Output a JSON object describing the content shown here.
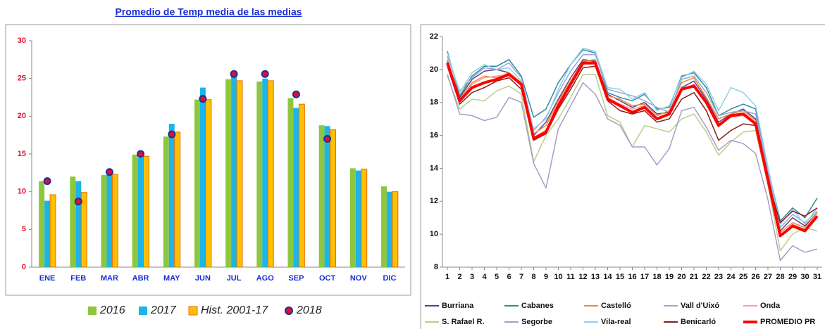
{
  "chart_data": [
    {
      "type": "bar",
      "title": "Promedio de Temp media de las medias",
      "categories": [
        "ENE",
        "FEB",
        "MAR",
        "ABR",
        "MAY",
        "JUN",
        "JUL",
        "AGO",
        "SEP",
        "OCT",
        "NOV",
        "DIC"
      ],
      "series": [
        {
          "name": "2016",
          "color": "#8dc63f",
          "values": [
            11.4,
            12.0,
            12.2,
            14.9,
            17.3,
            22.2,
            24.9,
            24.6,
            22.4,
            18.8,
            13.1,
            10.7
          ]
        },
        {
          "name": "2017",
          "color": "#1eb4e8",
          "values": [
            8.8,
            11.4,
            12.6,
            14.5,
            19.0,
            23.8,
            25.5,
            25.0,
            21.1,
            18.7,
            12.8,
            10.0
          ]
        },
        {
          "name": "Hist. 2001-17",
          "color": "#ffc000",
          "edgecolor": "#e46c0a",
          "values": [
            9.6,
            9.9,
            12.3,
            14.7,
            17.9,
            22.2,
            24.7,
            24.7,
            21.6,
            18.2,
            13.0,
            10.0
          ]
        },
        {
          "name": "2018",
          "color": "#e0102a",
          "edgecolor": "#1a2fa0",
          "marker": "circle",
          "values": [
            11.4,
            8.7,
            12.6,
            15.0,
            17.6,
            22.3,
            25.6,
            25.6,
            22.9,
            17.0,
            null,
            null
          ]
        }
      ],
      "ylim": [
        0,
        30
      ],
      "yticks": [
        0,
        5,
        10,
        15,
        20,
        25,
        30
      ],
      "grid": false
    },
    {
      "type": "line",
      "x": [
        1,
        2,
        3,
        4,
        5,
        6,
        7,
        8,
        9,
        10,
        11,
        12,
        13,
        14,
        15,
        16,
        17,
        18,
        19,
        20,
        21,
        22,
        23,
        24,
        25,
        26,
        27,
        28,
        29,
        30,
        31
      ],
      "xlim": [
        0.6,
        31.4
      ],
      "xticks": [
        1,
        2,
        3,
        4,
        5,
        6,
        7,
        8,
        9,
        10,
        11,
        12,
        13,
        14,
        15,
        16,
        17,
        18,
        19,
        20,
        21,
        22,
        23,
        24,
        25,
        26,
        27,
        28,
        29,
        30,
        31
      ],
      "ylim": [
        8,
        22
      ],
      "yticks": [
        8,
        10,
        12,
        14,
        16,
        18,
        20,
        22
      ],
      "grid": false,
      "series": [
        {
          "name": "Burriana",
          "color": "#5b3f8c",
          "values": [
            20.5,
            18.3,
            19.4,
            19.9,
            20.0,
            19.8,
            19.2,
            16.0,
            16.8,
            18.2,
            19.5,
            20.6,
            20.5,
            18.5,
            18.1,
            17.7,
            18.0,
            17.3,
            17.4,
            18.9,
            19.3,
            18.2,
            16.8,
            17.3,
            17.6,
            17.0,
            13.6,
            10.2,
            11.0,
            10.5,
            11.3
          ]
        },
        {
          "name": "Cabanes",
          "color": "#2e8b9a",
          "values": [
            21.1,
            18.4,
            19.6,
            20.2,
            20.2,
            20.6,
            19.6,
            17.1,
            17.6,
            19.2,
            20.3,
            21.2,
            21.0,
            18.6,
            18.3,
            18.1,
            18.5,
            17.6,
            17.7,
            19.6,
            19.8,
            18.9,
            17.2,
            17.6,
            17.9,
            17.6,
            14.0,
            10.8,
            11.6,
            11.0,
            12.2
          ]
        },
        {
          "name": "Castelló",
          "color": "#f0883a",
          "values": [
            20.6,
            18.2,
            19.2,
            19.6,
            19.5,
            19.8,
            19.2,
            16.1,
            16.6,
            18.1,
            19.3,
            20.5,
            20.6,
            18.4,
            18.2,
            17.8,
            17.9,
            17.2,
            17.5,
            19.2,
            19.5,
            18.3,
            17.0,
            17.3,
            17.5,
            16.9,
            13.5,
            10.1,
            10.7,
            10.4,
            11.3
          ]
        },
        {
          "name": "Vall d'Uixó",
          "color": "#9aa6d6",
          "values": [
            20.8,
            18.7,
            19.5,
            20.1,
            20.0,
            20.4,
            19.5,
            16.3,
            17.1,
            18.6,
            19.9,
            20.9,
            20.9,
            18.8,
            18.6,
            18.4,
            18.1,
            17.7,
            17.4,
            19.4,
            19.6,
            18.6,
            17.2,
            17.4,
            17.5,
            17.3,
            13.9,
            10.4,
            11.2,
            10.7,
            11.4
          ]
        },
        {
          "name": "Onda",
          "color": "#f0a0a0",
          "values": [
            20.3,
            18.1,
            19.1,
            19.5,
            19.6,
            19.7,
            19.0,
            15.9,
            16.3,
            18.0,
            19.1,
            20.3,
            20.3,
            18.3,
            17.9,
            17.6,
            17.8,
            17.0,
            17.3,
            18.8,
            19.1,
            18.1,
            16.7,
            17.1,
            17.2,
            16.8,
            13.2,
            9.9,
            10.6,
            10.3,
            11.1
          ]
        },
        {
          "name": "S. Rafael R.",
          "color": "#b5d18a",
          "values": [
            19.6,
            17.6,
            18.2,
            18.1,
            18.7,
            19.0,
            18.5,
            14.4,
            16.0,
            17.0,
            18.3,
            19.7,
            19.7,
            17.2,
            16.8,
            15.3,
            16.6,
            16.4,
            16.2,
            17.0,
            17.3,
            16.2,
            14.8,
            15.6,
            16.2,
            16.3,
            13.0,
            9.0,
            10.0,
            10.4,
            10.2
          ]
        },
        {
          "name": "Segorbe",
          "color": "#a99bc9",
          "values": [
            19.7,
            17.3,
            17.2,
            16.9,
            17.1,
            18.3,
            18.0,
            14.3,
            12.8,
            16.4,
            17.8,
            19.2,
            18.5,
            17.0,
            16.6,
            15.3,
            15.3,
            14.2,
            15.2,
            17.5,
            17.7,
            16.5,
            15.1,
            15.7,
            15.5,
            14.9,
            12.1,
            8.4,
            9.3,
            8.9,
            9.1
          ]
        },
        {
          "name": "Vila-real",
          "color": "#8fd0e8",
          "values": [
            21.0,
            18.6,
            19.8,
            20.3,
            20.0,
            20.1,
            19.3,
            16.4,
            17.0,
            18.8,
            20.3,
            21.3,
            21.1,
            18.9,
            18.8,
            18.2,
            18.6,
            17.5,
            17.8,
            19.5,
            19.9,
            19.1,
            17.5,
            18.9,
            18.6,
            17.8,
            14.1,
            10.6,
            11.5,
            10.6,
            11.6
          ]
        },
        {
          "name": "Benicarló",
          "color": "#8b1a1a",
          "values": [
            20.2,
            17.9,
            18.6,
            18.9,
            19.3,
            19.5,
            18.8,
            15.7,
            16.1,
            17.6,
            18.8,
            20.1,
            20.2,
            18.1,
            17.5,
            17.3,
            17.5,
            16.8,
            17.0,
            18.2,
            18.6,
            17.5,
            15.7,
            16.3,
            16.7,
            16.6,
            13.2,
            10.7,
            11.4,
            11.1,
            11.6
          ]
        },
        {
          "name": "PROMEDIO PR",
          "color": "#ff0000",
          "linewidth": 4,
          "values": [
            20.4,
            18.1,
            18.9,
            19.2,
            19.4,
            19.7,
            19.1,
            15.8,
            16.2,
            17.8,
            19.1,
            20.4,
            20.4,
            18.2,
            17.8,
            17.4,
            17.7,
            17.0,
            17.3,
            18.8,
            19.0,
            18.0,
            16.6,
            17.2,
            17.3,
            16.7,
            13.3,
            9.9,
            10.5,
            10.2,
            11.1
          ]
        }
      ]
    }
  ]
}
